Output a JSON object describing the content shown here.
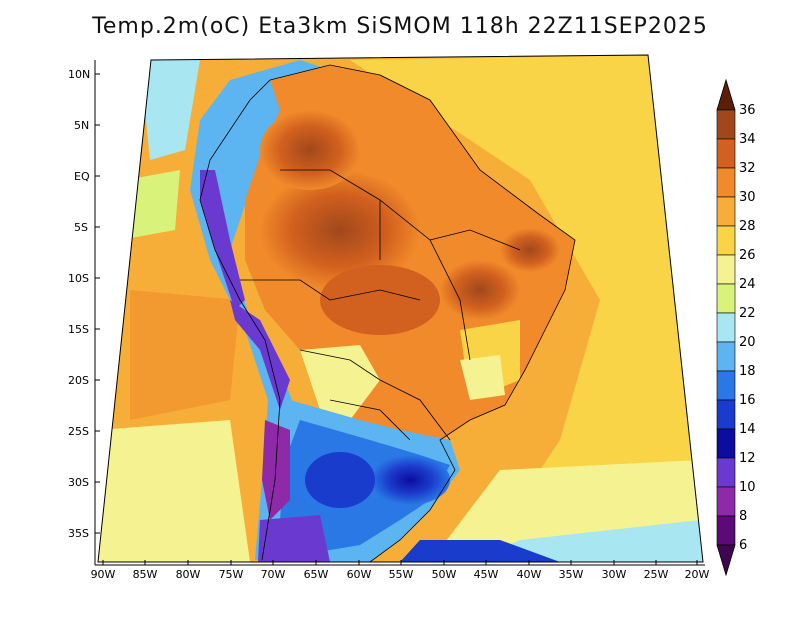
{
  "title": "Temp.2m(oC) Eta3km SiSMOM 118h 22Z11SEP2025",
  "lat_labels": [
    "10N",
    "5N",
    "EQ",
    "5S",
    "10S",
    "15S",
    "20S",
    "25S",
    "30S",
    "35S"
  ],
  "lon_labels": [
    "90W",
    "85W",
    "80W",
    "75W",
    "70W",
    "65W",
    "60W",
    "55W",
    "50W",
    "45W",
    "40W",
    "35W",
    "30W",
    "25W",
    "20W"
  ],
  "colorbar": {
    "labels": [
      "36",
      "34",
      "32",
      "30",
      "28",
      "26",
      "24",
      "22",
      "20",
      "18",
      "16",
      "14",
      "12",
      "10",
      "8",
      "6"
    ],
    "colors": [
      "#6e2f12",
      "#a0481c",
      "#d2601e",
      "#f08a2a",
      "#f6ae38",
      "#f8d446",
      "#f5f391",
      "#d9f27a",
      "#a8e6f2",
      "#5cb4f0",
      "#2a78e6",
      "#1a3ccc",
      "#0c0c9e",
      "#6a3ad0",
      "#8e2aa8",
      "#5c0a78"
    ],
    "top_arrow_color": "#5a1e0a",
    "bottom_arrow_color": "#3d0552"
  }
}
